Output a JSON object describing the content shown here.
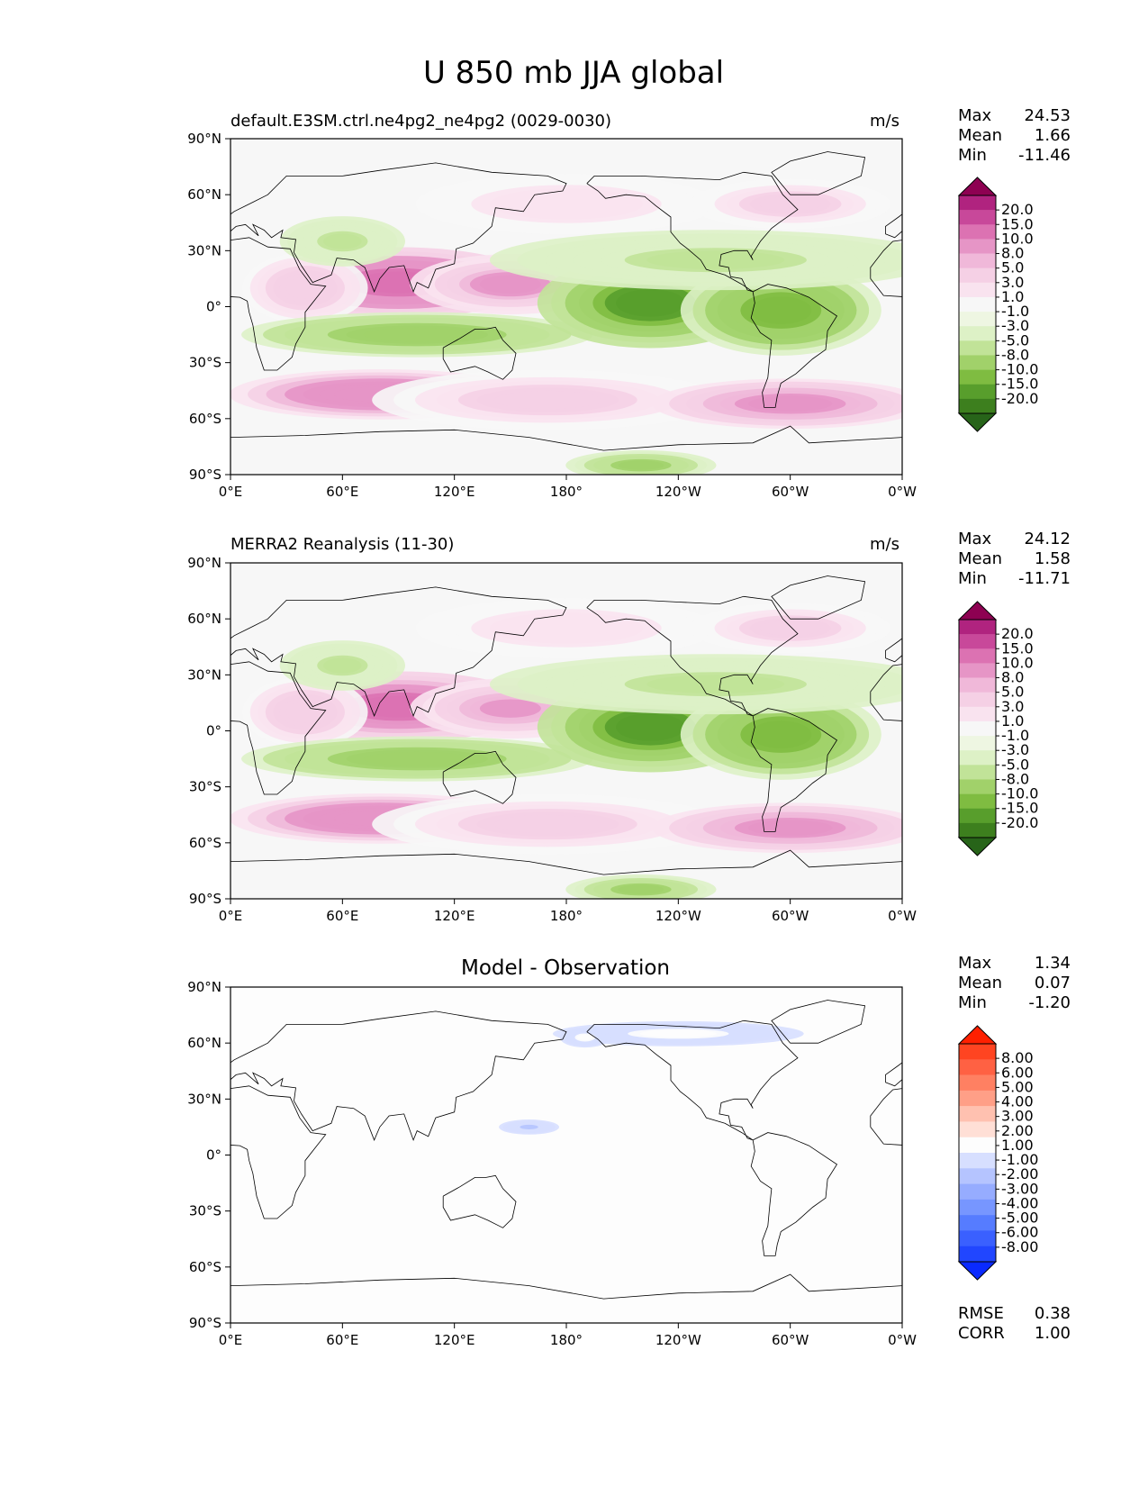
{
  "figure_title": "U 850 mb JJA global",
  "colors": {
    "test_ref_levels": [
      "#276419",
      "#3d7f1e",
      "#589e2c",
      "#7fbc41",
      "#a1d16a",
      "#c1e398",
      "#ddf1c6",
      "#eef6e2",
      "#f7f7f7",
      "#f9e3ef",
      "#f5d0e5",
      "#f0b8d9",
      "#e695c6",
      "#dc72b2",
      "#c8489a",
      "#b0237f",
      "#8e0152"
    ],
    "diff_levels": [
      "#0a2aff",
      "#2146ff",
      "#3a60ff",
      "#567cff",
      "#7796ff",
      "#96acff",
      "#b5c4ff",
      "#d7dfff",
      "#fdfdfd",
      "#ffdfd6",
      "#ffc1b0",
      "#ff9f87",
      "#ff8062",
      "#ff6143",
      "#ff4421",
      "#ff2000"
    ]
  },
  "chart_data": [
    {
      "type": "heatmap",
      "panel": "test",
      "title": "default.E3SM.ctrl.ne4pg2_ne4pg2 (0029-0030)",
      "units": "m/s",
      "stats": {
        "max_label": "Max",
        "max": "24.53",
        "mean_label": "Mean",
        "mean": "1.66",
        "min_label": "Min",
        "min": "-11.46"
      },
      "colorbar_labels": [
        "-20.0",
        "-15.0",
        "-10.0",
        "-8.0",
        "-5.0",
        "-3.0",
        "-1.0",
        "1.0",
        "3.0",
        "5.0",
        "8.0",
        "10.0",
        "15.0",
        "20.0"
      ],
      "x_ticks": [
        "0°E",
        "60°E",
        "120°E",
        "180°",
        "120°W",
        "60°W",
        "0°W"
      ],
      "y_ticks": [
        "90°N",
        "60°N",
        "30°N",
        "0°",
        "30°S",
        "60°S",
        "90°S"
      ],
      "xlim": [
        0,
        360
      ],
      "ylim": [
        -90,
        90
      ],
      "features": [
        {
          "lon": 90,
          "lat": 13,
          "v": 20,
          "rx": 55,
          "ry": 14
        },
        {
          "lon": 150,
          "lat": 12,
          "v": 12,
          "rx": 40,
          "ry": 12
        },
        {
          "lon": 40,
          "lat": 10,
          "v": 8,
          "rx": 25,
          "ry": 14
        },
        {
          "lon": 100,
          "lat": -15,
          "v": -8,
          "rx": 70,
          "ry": 9
        },
        {
          "lon": 225,
          "lat": 2,
          "v": -12,
          "rx": 45,
          "ry": 18
        },
        {
          "lon": 295,
          "lat": -2,
          "v": -10,
          "rx": 40,
          "ry": 18
        },
        {
          "lon": 260,
          "lat": 25,
          "v": -4,
          "rx": 90,
          "ry": 12
        },
        {
          "lon": 60,
          "lat": 35,
          "v": -4,
          "rx": 25,
          "ry": 10
        },
        {
          "lon": 80,
          "lat": -47,
          "v": 16,
          "rx": 60,
          "ry": 10
        },
        {
          "lon": 170,
          "lat": -50,
          "v": 7,
          "rx": 70,
          "ry": 12
        },
        {
          "lon": 300,
          "lat": -52,
          "v": 13,
          "rx": 55,
          "ry": 10
        },
        {
          "lon": 180,
          "lat": 55,
          "v": 5,
          "rx": 60,
          "ry": 12
        },
        {
          "lon": 300,
          "lat": 55,
          "v": 7,
          "rx": 40,
          "ry": 10
        },
        {
          "lon": 220,
          "lat": -85,
          "v": -6,
          "rx": 30,
          "ry": 6
        }
      ]
    },
    {
      "type": "heatmap",
      "panel": "reference",
      "title": "MERRA2 Reanalysis (11-30)",
      "units": "m/s",
      "stats": {
        "max_label": "Max",
        "max": "24.12",
        "mean_label": "Mean",
        "mean": "1.58",
        "min_label": "Min",
        "min": "-11.71"
      },
      "colorbar_labels": [
        "-20.0",
        "-15.0",
        "-10.0",
        "-8.0",
        "-5.0",
        "-3.0",
        "-1.0",
        "1.0",
        "3.0",
        "5.0",
        "8.0",
        "10.0",
        "15.0",
        "20.0"
      ],
      "x_ticks": [
        "0°E",
        "60°E",
        "120°E",
        "180°",
        "120°W",
        "60°W",
        "0°W"
      ],
      "y_ticks": [
        "90°N",
        "60°N",
        "30°N",
        "0°",
        "30°S",
        "60°S",
        "90°S"
      ],
      "xlim": [
        0,
        360
      ],
      "ylim": [
        -90,
        90
      ],
      "features": [
        {
          "lon": 90,
          "lat": 13,
          "v": 19,
          "rx": 55,
          "ry": 14
        },
        {
          "lon": 150,
          "lat": 12,
          "v": 11,
          "rx": 40,
          "ry": 12
        },
        {
          "lon": 40,
          "lat": 10,
          "v": 8,
          "rx": 25,
          "ry": 14
        },
        {
          "lon": 100,
          "lat": -15,
          "v": -8,
          "rx": 70,
          "ry": 9
        },
        {
          "lon": 225,
          "lat": 2,
          "v": -12,
          "rx": 45,
          "ry": 18
        },
        {
          "lon": 295,
          "lat": -2,
          "v": -10,
          "rx": 40,
          "ry": 18
        },
        {
          "lon": 260,
          "lat": 25,
          "v": -4,
          "rx": 90,
          "ry": 12
        },
        {
          "lon": 60,
          "lat": 35,
          "v": -4,
          "rx": 25,
          "ry": 10
        },
        {
          "lon": 80,
          "lat": -47,
          "v": 16,
          "rx": 60,
          "ry": 10
        },
        {
          "lon": 170,
          "lat": -50,
          "v": 7,
          "rx": 70,
          "ry": 12
        },
        {
          "lon": 300,
          "lat": -52,
          "v": 13,
          "rx": 55,
          "ry": 10
        },
        {
          "lon": 180,
          "lat": 55,
          "v": 5,
          "rx": 60,
          "ry": 12
        },
        {
          "lon": 300,
          "lat": 55,
          "v": 7,
          "rx": 40,
          "ry": 10
        },
        {
          "lon": 220,
          "lat": -85,
          "v": -6,
          "rx": 30,
          "ry": 6
        }
      ]
    },
    {
      "type": "heatmap",
      "panel": "diff",
      "title": "Model - Observation",
      "units": "",
      "stats": {
        "max_label": "Max",
        "max": "1.34",
        "mean_label": "Mean",
        "mean": "0.07",
        "min_label": "Min",
        "min": "-1.20"
      },
      "extra_stats": {
        "rmse_label": "RMSE",
        "rmse": "0.38",
        "corr_label": "CORR",
        "corr": "1.00"
      },
      "colorbar_labels": [
        "-8.00",
        "-6.00",
        "-5.00",
        "-4.00",
        "-3.00",
        "-2.00",
        "-1.00",
        "1.00",
        "2.00",
        "3.00",
        "4.00",
        "5.00",
        "6.00",
        "8.00"
      ],
      "x_ticks": [
        "0°E",
        "60°E",
        "120°E",
        "180°",
        "120°W",
        "60°W",
        "0°W"
      ],
      "y_ticks": [
        "90°N",
        "60°N",
        "30°N",
        "0°",
        "30°S",
        "60°S",
        "90°S"
      ],
      "xlim": [
        0,
        360
      ],
      "ylim": [
        -90,
        90
      ],
      "features": [
        {
          "lon": 160,
          "lat": 15,
          "v": -1.1,
          "rx": 12,
          "ry": 3
        },
        {
          "lon": 240,
          "lat": 65,
          "v": 1.2,
          "rx": 50,
          "ry": 5
        },
        {
          "lon": 190,
          "lat": 63,
          "v": 1.2,
          "rx": 10,
          "ry": 4
        }
      ]
    }
  ]
}
